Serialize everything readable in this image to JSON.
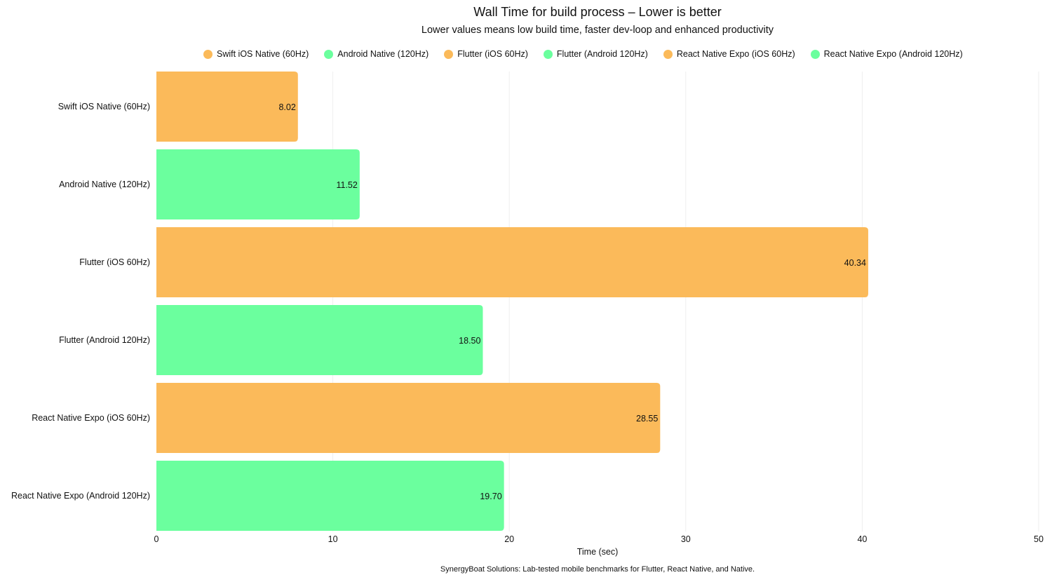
{
  "chart_data": {
    "type": "bar",
    "orientation": "horizontal",
    "title": "Wall Time for build process – Lower is better",
    "subtitle": "Lower values means low build time, faster dev-loop and enhanced productivity",
    "xlabel": "Time (sec)",
    "ylabel": "",
    "xlim": [
      0,
      50
    ],
    "xticks": [
      "0",
      "10",
      "20",
      "30",
      "40",
      "50"
    ],
    "grid": true,
    "legend_position": "top",
    "categories": [
      "Swift iOS Native (60Hz)",
      "Android Native (120Hz)",
      "Flutter (iOS 60Hz)",
      "Flutter (Android 120Hz)",
      "React Native Expo (iOS 60Hz)",
      "React Native Expo (Android 120Hz)"
    ],
    "values": [
      8.02,
      11.52,
      40.34,
      18.5,
      28.55,
      19.7
    ],
    "value_labels": [
      "8.02",
      "11.52",
      "40.34",
      "18.50",
      "28.55",
      "19.70"
    ],
    "colors": [
      "#FBBA5A",
      "#6BFF9E",
      "#FBBA5A",
      "#6BFF9E",
      "#FBBA5A",
      "#6BFF9E"
    ],
    "caption": "SynergyBoat Solutions: Lab-tested mobile benchmarks for Flutter, React Native, and Native."
  }
}
